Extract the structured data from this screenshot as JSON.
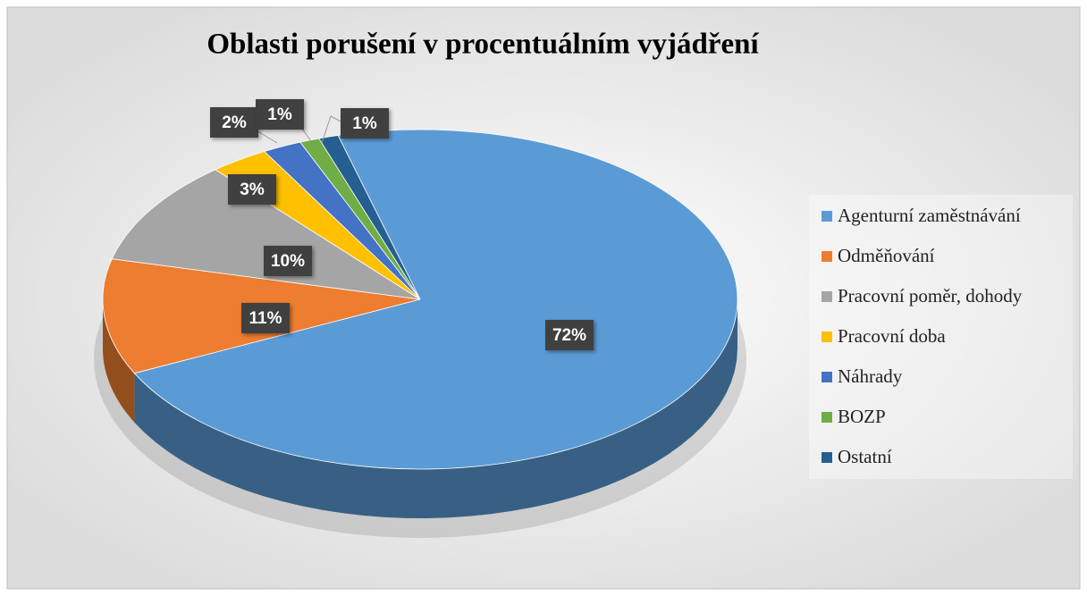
{
  "chart_data": {
    "type": "pie",
    "title": "Oblasti porušení v procentuálním vyjádření",
    "categories": [
      "Agenturní zaměstnávání",
      "Odměňování",
      "Pracovní poměr, dohody",
      "Pracovní doba",
      "Náhrady",
      "BOZP",
      "Ostatní"
    ],
    "values": [
      72,
      11,
      10,
      3,
      2,
      1,
      1
    ],
    "value_labels": [
      "72%",
      "11%",
      "10%",
      "3%",
      "2%",
      "1%",
      "1%"
    ],
    "colors": [
      "#5b9bd5",
      "#ed7d31",
      "#a5a5a5",
      "#ffc000",
      "#4472c4",
      "#70ad47",
      "#255e91"
    ],
    "legend": "right"
  }
}
